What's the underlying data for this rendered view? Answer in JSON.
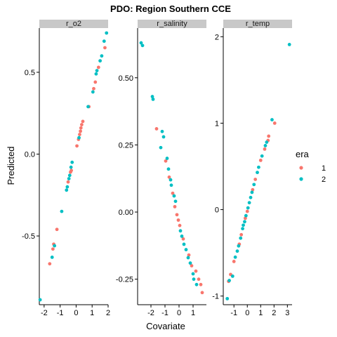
{
  "chart_data": {
    "type": "scatter",
    "title": "PDO: Region Southern CCE",
    "xlabel": "Covariate",
    "ylabel": "Predicted",
    "legend": {
      "title": "era",
      "position": "right",
      "entries": [
        {
          "label": "1",
          "color": "#F8766D"
        },
        {
          "label": "2",
          "color": "#00BFC4"
        }
      ]
    },
    "grid": false,
    "panels": [
      {
        "name": "r_o2",
        "xlim": [
          -2.3,
          2.0
        ],
        "ylim": [
          -0.92,
          0.77
        ],
        "xticks": [
          -2,
          -1,
          0,
          1,
          2
        ],
        "xtick_labels": [
          "-2",
          "-1",
          "0",
          "1",
          "2"
        ],
        "yticks": [
          -0.5,
          0.0,
          0.5
        ],
        "ytick_labels": [
          "-0.5",
          "0.0",
          "0.5"
        ],
        "points": [
          {
            "x": -1.65,
            "y": -0.67,
            "era": "1"
          },
          {
            "x": -1.45,
            "y": -0.58,
            "era": "1"
          },
          {
            "x": -1.4,
            "y": -0.55,
            "era": "1"
          },
          {
            "x": -1.2,
            "y": -0.46,
            "era": "1"
          },
          {
            "x": -0.5,
            "y": -0.17,
            "era": "1"
          },
          {
            "x": -0.35,
            "y": -0.11,
            "era": "1"
          },
          {
            "x": -0.3,
            "y": -0.1,
            "era": "1"
          },
          {
            "x": 0.05,
            "y": 0.05,
            "era": "1"
          },
          {
            "x": 0.15,
            "y": 0.09,
            "era": "1"
          },
          {
            "x": 0.22,
            "y": 0.12,
            "era": "1"
          },
          {
            "x": 0.27,
            "y": 0.14,
            "era": "1"
          },
          {
            "x": 0.3,
            "y": 0.16,
            "era": "1"
          },
          {
            "x": 0.35,
            "y": 0.18,
            "era": "1"
          },
          {
            "x": 0.42,
            "y": 0.2,
            "era": "1"
          },
          {
            "x": 0.8,
            "y": 0.29,
            "era": "1"
          },
          {
            "x": 1.1,
            "y": 0.4,
            "era": "1"
          },
          {
            "x": 1.2,
            "y": 0.44,
            "era": "1"
          },
          {
            "x": 1.4,
            "y": 0.53,
            "era": "1"
          },
          {
            "x": 1.8,
            "y": 0.65,
            "era": "1"
          },
          {
            "x": -2.25,
            "y": -0.89,
            "era": "2"
          },
          {
            "x": -1.5,
            "y": -0.63,
            "era": "2"
          },
          {
            "x": -1.35,
            "y": -0.56,
            "era": "2"
          },
          {
            "x": -0.9,
            "y": -0.35,
            "era": "2"
          },
          {
            "x": -0.6,
            "y": -0.22,
            "era": "2"
          },
          {
            "x": -0.55,
            "y": -0.2,
            "era": "2"
          },
          {
            "x": -0.45,
            "y": -0.15,
            "era": "2"
          },
          {
            "x": -0.4,
            "y": -0.13,
            "era": "2"
          },
          {
            "x": -0.32,
            "y": -0.08,
            "era": "2"
          },
          {
            "x": -0.25,
            "y": -0.05,
            "era": "2"
          },
          {
            "x": 0.18,
            "y": 0.1,
            "era": "2"
          },
          {
            "x": 0.75,
            "y": 0.29,
            "era": "2"
          },
          {
            "x": 1.05,
            "y": 0.38,
            "era": "2"
          },
          {
            "x": 1.25,
            "y": 0.49,
            "era": "2"
          },
          {
            "x": 1.3,
            "y": 0.51,
            "era": "2"
          },
          {
            "x": 1.5,
            "y": 0.57,
            "era": "2"
          },
          {
            "x": 1.6,
            "y": 0.6,
            "era": "2"
          },
          {
            "x": 1.75,
            "y": 0.69,
            "era": "2"
          },
          {
            "x": 1.9,
            "y": 0.74,
            "era": "2"
          }
        ]
      },
      {
        "name": "r_salinity",
        "xlim": [
          -2.95,
          1.95
        ],
        "ylim": [
          -0.345,
          0.685
        ],
        "xticks": [
          -2,
          -1,
          0,
          1
        ],
        "xtick_labels": [
          "-2",
          "-1",
          "0",
          "1"
        ],
        "yticks": [
          -0.25,
          0.0,
          0.25,
          0.5
        ],
        "ytick_labels": [
          "-0.25",
          "0.00",
          "0.25",
          "0.50"
        ],
        "points": [
          {
            "x": -1.6,
            "y": 0.31,
            "era": "1"
          },
          {
            "x": -0.95,
            "y": 0.19,
            "era": "1"
          },
          {
            "x": -0.7,
            "y": 0.13,
            "era": "1"
          },
          {
            "x": -0.45,
            "y": 0.07,
            "era": "1"
          },
          {
            "x": -0.3,
            "y": 0.02,
            "era": "1"
          },
          {
            "x": -0.15,
            "y": -0.01,
            "era": "1"
          },
          {
            "x": -0.05,
            "y": -0.03,
            "era": "1"
          },
          {
            "x": 0.05,
            "y": -0.05,
            "era": "1"
          },
          {
            "x": 0.3,
            "y": -0.1,
            "era": "1"
          },
          {
            "x": 0.7,
            "y": -0.16,
            "era": "1"
          },
          {
            "x": 0.9,
            "y": -0.2,
            "era": "1"
          },
          {
            "x": 1.2,
            "y": -0.22,
            "era": "1"
          },
          {
            "x": 1.4,
            "y": -0.25,
            "era": "1"
          },
          {
            "x": 1.55,
            "y": -0.27,
            "era": "1"
          },
          {
            "x": 1.65,
            "y": -0.3,
            "era": "1"
          },
          {
            "x": -2.7,
            "y": 0.63,
            "era": "2"
          },
          {
            "x": -2.6,
            "y": 0.62,
            "era": "2"
          },
          {
            "x": -1.9,
            "y": 0.43,
            "era": "2"
          },
          {
            "x": -1.85,
            "y": 0.42,
            "era": "2"
          },
          {
            "x": -1.2,
            "y": 0.3,
            "era": "2"
          },
          {
            "x": -1.1,
            "y": 0.28,
            "era": "2"
          },
          {
            "x": -1.3,
            "y": 0.24,
            "era": "2"
          },
          {
            "x": -0.85,
            "y": 0.2,
            "era": "2"
          },
          {
            "x": -0.75,
            "y": 0.16,
            "era": "2"
          },
          {
            "x": -0.6,
            "y": 0.12,
            "era": "2"
          },
          {
            "x": -0.55,
            "y": 0.1,
            "era": "2"
          },
          {
            "x": -0.35,
            "y": 0.06,
            "era": "2"
          },
          {
            "x": -0.25,
            "y": 0.04,
            "era": "2"
          },
          {
            "x": 0.1,
            "y": -0.07,
            "era": "2"
          },
          {
            "x": 0.2,
            "y": -0.09,
            "era": "2"
          },
          {
            "x": 0.35,
            "y": -0.12,
            "era": "2"
          },
          {
            "x": 0.5,
            "y": -0.14,
            "era": "2"
          },
          {
            "x": 0.65,
            "y": -0.17,
            "era": "2"
          },
          {
            "x": 0.8,
            "y": -0.19,
            "era": "2"
          },
          {
            "x": 1.0,
            "y": -0.23,
            "era": "2"
          },
          {
            "x": 1.05,
            "y": -0.25,
            "era": "2"
          },
          {
            "x": 1.25,
            "y": -0.27,
            "era": "2"
          }
        ]
      },
      {
        "name": "r_temp",
        "xlim": [
          -1.8,
          3.35
        ],
        "ylim": [
          -1.1,
          2.1
        ],
        "xticks": [
          -1,
          0,
          1,
          2,
          3
        ],
        "xtick_labels": [
          "-1",
          "0",
          "1",
          "2",
          "3"
        ],
        "yticks": [
          -1,
          0,
          1,
          2
        ],
        "ytick_labels": [
          "-1",
          "0",
          "1",
          "2"
        ],
        "points": [
          {
            "x": -1.4,
            "y": -0.83,
            "era": "1"
          },
          {
            "x": -1.25,
            "y": -0.75,
            "era": "1"
          },
          {
            "x": -1.0,
            "y": -0.6,
            "era": "1"
          },
          {
            "x": -0.6,
            "y": -0.4,
            "era": "1"
          },
          {
            "x": -0.45,
            "y": -0.29,
            "era": "1"
          },
          {
            "x": -0.15,
            "y": -0.1,
            "era": "1"
          },
          {
            "x": 0.0,
            "y": -0.02,
            "era": "1"
          },
          {
            "x": 0.4,
            "y": 0.23,
            "era": "1"
          },
          {
            "x": 0.6,
            "y": 0.35,
            "era": "1"
          },
          {
            "x": 1.0,
            "y": 0.57,
            "era": "1"
          },
          {
            "x": 1.3,
            "y": 0.7,
            "era": "1"
          },
          {
            "x": 1.55,
            "y": 0.8,
            "era": "1"
          },
          {
            "x": 1.6,
            "y": 0.85,
            "era": "1"
          },
          {
            "x": 2.05,
            "y": 1.0,
            "era": "1"
          },
          {
            "x": -1.5,
            "y": -1.03,
            "era": "2"
          },
          {
            "x": -1.35,
            "y": -0.82,
            "era": "2"
          },
          {
            "x": -1.1,
            "y": -0.77,
            "era": "2"
          },
          {
            "x": -0.9,
            "y": -0.55,
            "era": "2"
          },
          {
            "x": -0.75,
            "y": -0.48,
            "era": "2"
          },
          {
            "x": -0.65,
            "y": -0.42,
            "era": "2"
          },
          {
            "x": -0.5,
            "y": -0.33,
            "era": "2"
          },
          {
            "x": -0.35,
            "y": -0.22,
            "era": "2"
          },
          {
            "x": -0.3,
            "y": -0.18,
            "era": "2"
          },
          {
            "x": -0.2,
            "y": -0.14,
            "era": "2"
          },
          {
            "x": -0.1,
            "y": -0.07,
            "era": "2"
          },
          {
            "x": 0.05,
            "y": 0.02,
            "era": "2"
          },
          {
            "x": 0.15,
            "y": 0.08,
            "era": "2"
          },
          {
            "x": 0.25,
            "y": 0.14,
            "era": "2"
          },
          {
            "x": 0.35,
            "y": 0.2,
            "era": "2"
          },
          {
            "x": 0.5,
            "y": 0.29,
            "era": "2"
          },
          {
            "x": 0.75,
            "y": 0.43,
            "era": "2"
          },
          {
            "x": 0.85,
            "y": 0.49,
            "era": "2"
          },
          {
            "x": 1.1,
            "y": 0.62,
            "era": "2"
          },
          {
            "x": 1.35,
            "y": 0.74,
            "era": "2"
          },
          {
            "x": 1.45,
            "y": 0.78,
            "era": "2"
          },
          {
            "x": 1.85,
            "y": 1.04,
            "era": "2"
          },
          {
            "x": 3.15,
            "y": 1.91,
            "era": "2"
          }
        ]
      }
    ]
  }
}
